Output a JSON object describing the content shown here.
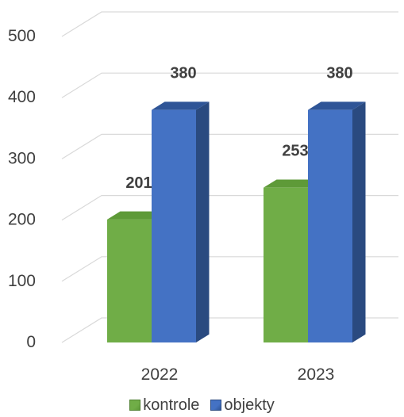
{
  "chart_data": {
    "type": "bar",
    "three_d": true,
    "title": "",
    "xlabel": "",
    "ylabel": "",
    "categories": [
      "2022",
      "2023"
    ],
    "series": [
      {
        "name": "kontrole",
        "values": [
          201,
          253
        ],
        "color": "#70AD47",
        "top_color": "#5E9A38",
        "side_color": "#4E8030"
      },
      {
        "name": "objekty",
        "values": [
          380,
          380
        ],
        "color": "#4472C4",
        "top_color": "#2F5597",
        "side_color": "#2A4A80"
      }
    ],
    "data_labels": [
      [
        "201",
        "253"
      ],
      [
        "380",
        "380"
      ]
    ],
    "ylim": [
      0,
      500
    ],
    "yticks": [
      "0",
      "100",
      "200",
      "300",
      "400",
      "500"
    ],
    "grid": true,
    "legend_position": "bottom",
    "grid_color": "#D9D9D9",
    "text_color": "#404040"
  }
}
